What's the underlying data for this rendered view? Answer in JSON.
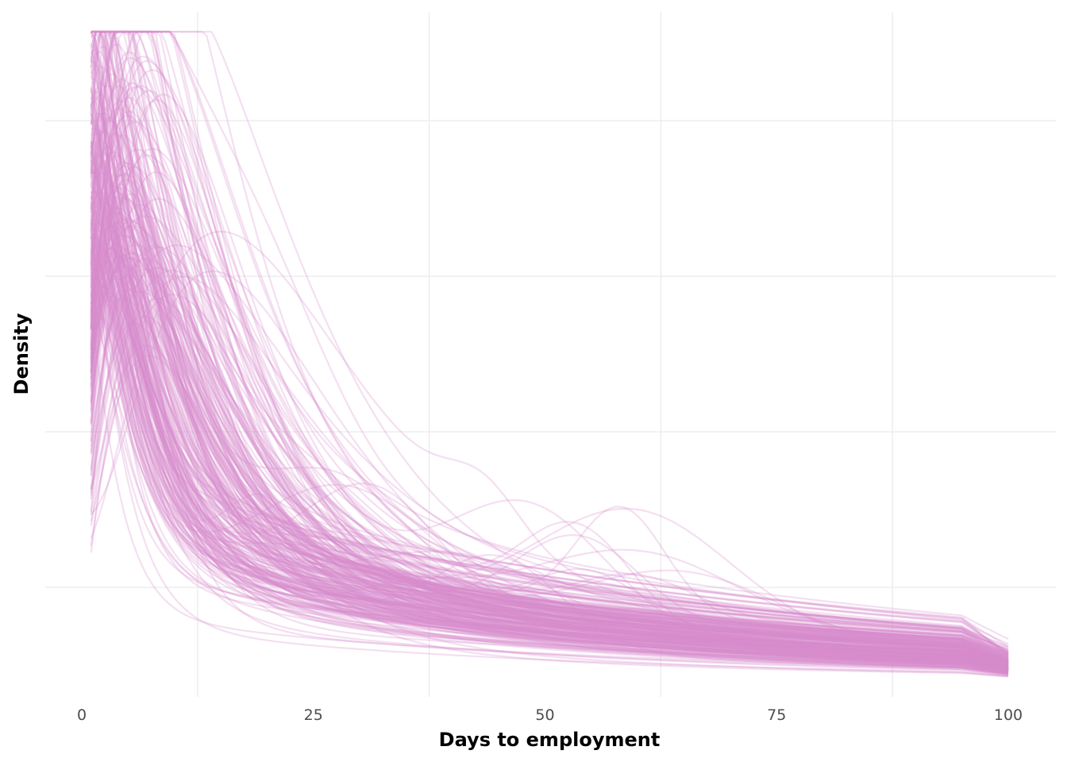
{
  "chart_data": {
    "type": "line",
    "title": "",
    "xlabel": "Days to employment",
    "ylabel": "Density",
    "xlim": [
      0,
      100
    ],
    "x_ticks": [
      0,
      25,
      50,
      75,
      100
    ],
    "x_tick_labels": [
      "0",
      "25",
      "50",
      "75",
      "100"
    ],
    "y_ticks_labeled": false,
    "grid": true,
    "legend": "none",
    "series_color": "#d98ccc",
    "series_count": 300,
    "x_range_of_curves": [
      1,
      100
    ],
    "representative_curve": {
      "x": [
        1,
        3,
        5,
        8,
        10,
        15,
        20,
        25,
        30,
        40,
        50,
        60,
        70,
        80,
        90,
        100
      ],
      "relative_density": [
        0.62,
        0.8,
        0.72,
        0.58,
        0.5,
        0.37,
        0.29,
        0.24,
        0.2,
        0.15,
        0.12,
        0.1,
        0.09,
        0.08,
        0.075,
        0.05
      ]
    }
  }
}
